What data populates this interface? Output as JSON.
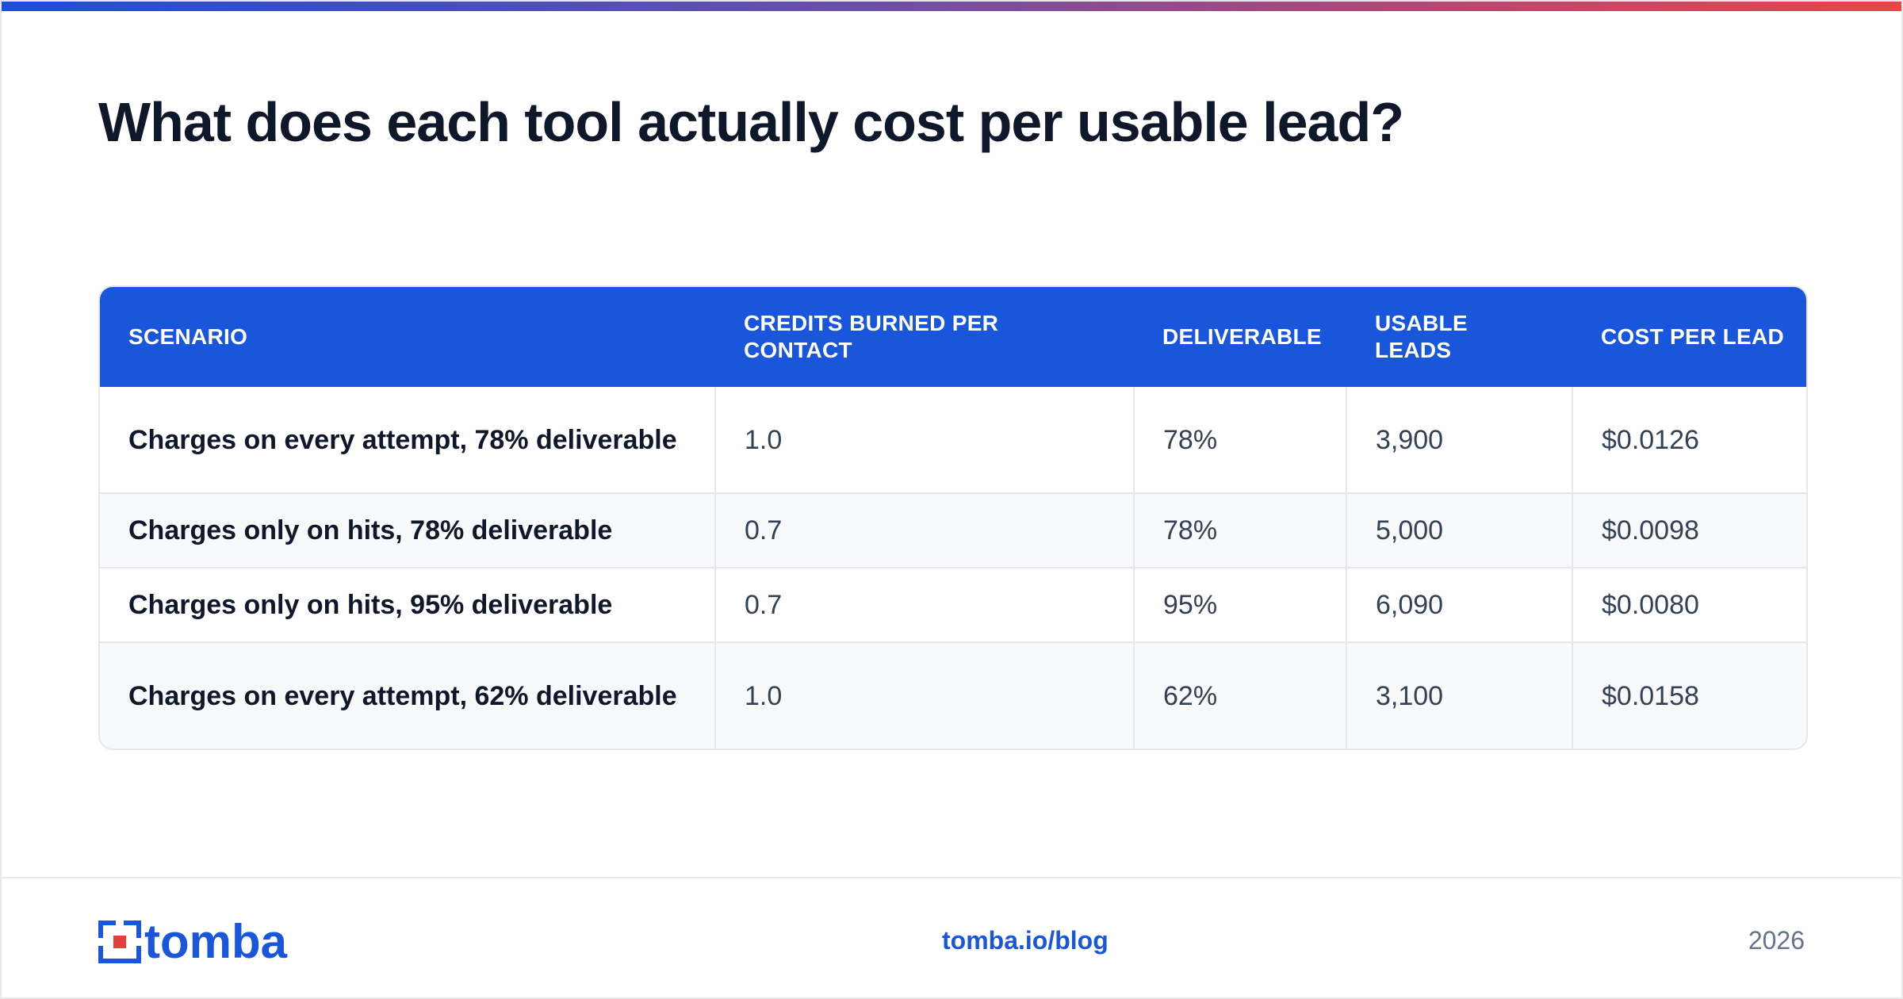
{
  "title": "What does each tool actually cost per usable lead?",
  "table": {
    "headers": [
      "SCENARIO",
      "CREDITS BURNED PER CONTACT",
      "DELIVERABLE",
      "USABLE LEADS",
      "COST PER LEAD"
    ],
    "rows": [
      [
        "Charges on every attempt, 78% deliverable",
        "1.0",
        "78%",
        "3,900",
        "$0.0126"
      ],
      [
        "Charges only on hits, 78% deliverable",
        "0.7",
        "78%",
        "5,000",
        "$0.0098"
      ],
      [
        "Charges only on hits, 95% deliverable",
        "0.7",
        "95%",
        "6,090",
        "$0.0080"
      ],
      [
        "Charges on every attempt, 62% deliverable",
        "1.0",
        "62%",
        "3,100",
        "$0.0158"
      ]
    ]
  },
  "footer": {
    "logo_text": "tomba",
    "link": "tomba.io/blog",
    "year": "2026"
  },
  "colors": {
    "accent": "#1a56db",
    "title": "#0f172a",
    "gradient_start": "#1d4ed8",
    "gradient_end": "#e64747"
  },
  "icons": {
    "logo": "tomba-logo-icon"
  }
}
